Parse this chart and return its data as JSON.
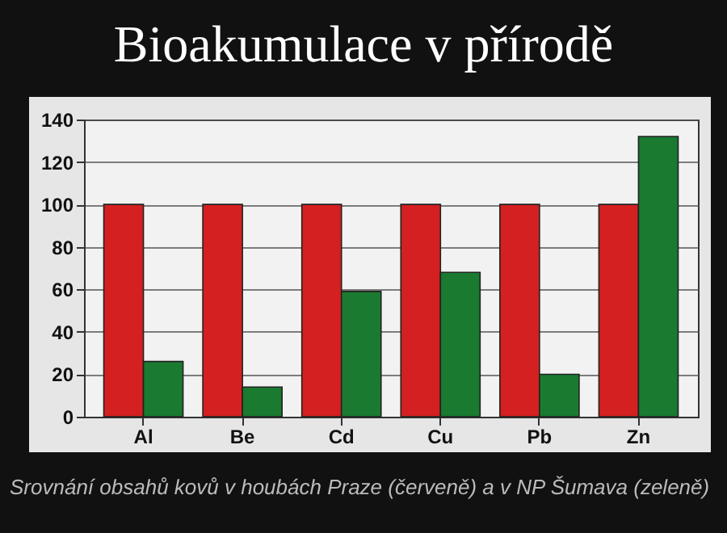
{
  "chart_data": {
    "type": "bar",
    "title": "Bioakumulace v přírodě",
    "categories": [
      "Al",
      "Be",
      "Cd",
      "Cu",
      "Pb",
      "Zn"
    ],
    "series": [
      {
        "color": "#d42020",
        "values": [
          100,
          100,
          100,
          100,
          100,
          100
        ]
      },
      {
        "color": "#1a7a30",
        "values": [
          26,
          14,
          59,
          68,
          20,
          132
        ]
      }
    ],
    "ylim": [
      0,
      140
    ],
    "yticks": [
      0,
      20,
      40,
      60,
      80,
      100,
      120,
      140
    ],
    "grid": "y",
    "annotations": [
      "Srovnání obsahů kovů v houbách Praze (červeně) a v NP Šumava (zeleně)"
    ]
  }
}
